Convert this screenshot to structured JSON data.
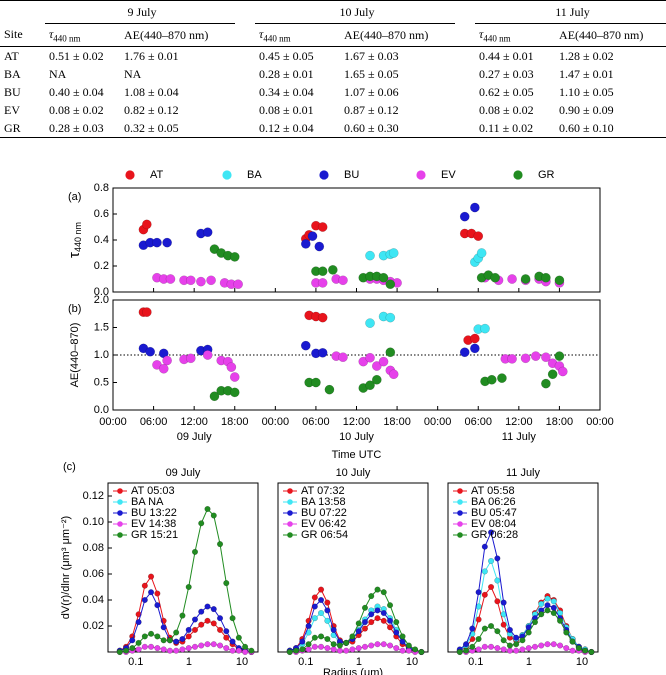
{
  "table": {
    "groups": [
      "9 July",
      "10 July",
      "11 July"
    ],
    "header": [
      "Site",
      {
        "main": "τ",
        "sub": "440 nm"
      },
      "AE(440–870 nm)",
      {
        "main": "τ",
        "sub": "440 nm"
      },
      "AE(440–870 nm)",
      {
        "main": "τ",
        "sub": "440 nm"
      },
      "AE(440–870 nm)"
    ],
    "rows": [
      [
        "AT",
        "0.51 ± 0.02",
        "1.76 ± 0.01",
        "0.45 ± 0.05",
        "1.67 ± 0.03",
        "0.44 ± 0.01",
        "1.28 ± 0.02"
      ],
      [
        "BA",
        "NA",
        "NA",
        "0.28 ± 0.01",
        "1.65 ± 0.05",
        "0.27 ± 0.03",
        "1.47 ± 0.01"
      ],
      [
        "BU",
        "0.40 ± 0.04",
        "1.08 ± 0.04",
        "0.34 ± 0.04",
        "1.07 ± 0.06",
        "0.62 ± 0.05",
        "1.10 ± 0.05"
      ],
      [
        "EV",
        "0.08 ± 0.02",
        "0.82 ± 0.12",
        "0.08 ± 0.01",
        "0.87 ± 0.12",
        "0.08 ± 0.02",
        "0.90 ± 0.09"
      ],
      [
        "GR",
        "0.28 ± 0.03",
        "0.32 ± 0.05",
        "0.12 ± 0.04",
        "0.60 ± 0.30",
        "0.11 ± 0.02",
        "0.60 ± 0.10"
      ]
    ]
  },
  "chart_data": [
    {
      "type": "scatter",
      "panel_label": "(a)",
      "ylabel": {
        "main": "τ",
        "sub": "440 nm"
      },
      "legend": "top",
      "xlim": [
        0,
        72
      ],
      "xticks": [
        0,
        6,
        12,
        18,
        24,
        30,
        36,
        42,
        48,
        54,
        60,
        66,
        72
      ],
      "xtick_labels": false,
      "ylim": [
        0,
        0.8
      ],
      "yticks": [
        {
          "value": 0,
          "label": "0.0"
        },
        0.2,
        0.4,
        0.6,
        0.8
      ],
      "series": [
        {
          "name": "AT",
          "color": "#e8141c",
          "x": [
            4.5,
            5,
            28.5,
            29,
            30,
            31,
            52,
            53,
            54
          ],
          "values": [
            0.48,
            0.52,
            0.41,
            0.44,
            0.51,
            0.5,
            0.45,
            0.45,
            0.43
          ]
        },
        {
          "name": "BA",
          "color": "#3ee6f4",
          "x": [
            38,
            40,
            41,
            41.5,
            53.5,
            54,
            54.5
          ],
          "values": [
            0.28,
            0.28,
            0.29,
            0.3,
            0.23,
            0.26,
            0.3
          ]
        },
        {
          "name": "BU",
          "color": "#1a1ad0",
          "x": [
            4.5,
            5.5,
            6.5,
            8,
            13,
            14,
            28.5,
            29.5,
            30.5,
            52,
            53.5
          ],
          "values": [
            0.36,
            0.38,
            0.38,
            0.38,
            0.45,
            0.46,
            0.37,
            0.43,
            0.35,
            0.58,
            0.65
          ]
        },
        {
          "name": "EV",
          "color": "#e641ea",
          "x": [
            6.5,
            7.5,
            8.5,
            10.5,
            11.5,
            13,
            14.5,
            16.5,
            17.5,
            18.5,
            30,
            31,
            33,
            34,
            38,
            39,
            40,
            41,
            42,
            55,
            57,
            59,
            61,
            63,
            64,
            66
          ],
          "values": [
            0.11,
            0.1,
            0.1,
            0.09,
            0.09,
            0.08,
            0.09,
            0.07,
            0.06,
            0.06,
            0.07,
            0.07,
            0.1,
            0.09,
            0.1,
            0.1,
            0.09,
            0.08,
            0.07,
            0.11,
            0.09,
            0.1,
            0.09,
            0.1,
            0.08,
            0.07
          ]
        },
        {
          "name": "GR",
          "color": "#218c21",
          "x": [
            15,
            16,
            17,
            18,
            30,
            31,
            32.5,
            37,
            38,
            39,
            40,
            41,
            54.5,
            55.5,
            56.5,
            61,
            63,
            64,
            66
          ],
          "values": [
            0.33,
            0.3,
            0.28,
            0.27,
            0.16,
            0.16,
            0.17,
            0.11,
            0.12,
            0.12,
            0.11,
            0.06,
            0.11,
            0.13,
            0.11,
            0.1,
            0.12,
            0.11,
            0.09
          ]
        }
      ]
    },
    {
      "type": "scatter",
      "panel_label": "(b)",
      "ylabel": "AE(440–870)",
      "xlabel": "Time UTC",
      "day_labels": [
        "09 July",
        "10 July",
        "11 July"
      ],
      "xlim": [
        0,
        72
      ],
      "xticks": [
        {
          "value": 0,
          "label": "00:00"
        },
        {
          "value": 6,
          "label": "06:00"
        },
        {
          "value": 12,
          "label": "12:00"
        },
        {
          "value": 18,
          "label": "18:00"
        },
        {
          "value": 24,
          "label": "00:00"
        },
        {
          "value": 30,
          "label": "06:00"
        },
        {
          "value": 36,
          "label": "12:00"
        },
        {
          "value": 42,
          "label": "18:00"
        },
        {
          "value": 48,
          "label": "00:00"
        },
        {
          "value": 54,
          "label": "06:00"
        },
        {
          "value": 60,
          "label": "12:00"
        },
        {
          "value": 66,
          "label": "18:00"
        },
        {
          "value": 72,
          "label": "00:00"
        }
      ],
      "ylim": [
        0,
        2.0
      ],
      "yticks": [
        {
          "value": 0,
          "label": "0.0"
        },
        0.5,
        {
          "value": 1,
          "label": "1.0"
        },
        1.5,
        {
          "value": 2,
          "label": "2.0"
        }
      ],
      "reference_line": 1,
      "series": [
        {
          "color": "#e8141c",
          "x": [
            4.5,
            5,
            29,
            30,
            31,
            52.5,
            53.5
          ],
          "values": [
            1.78,
            1.78,
            1.72,
            1.7,
            1.68,
            1.27,
            1.3
          ]
        },
        {
          "color": "#3ee6f4",
          "x": [
            38,
            40,
            41,
            54,
            55
          ],
          "values": [
            1.58,
            1.7,
            1.68,
            1.47,
            1.48
          ]
        },
        {
          "color": "#1a1ad0",
          "x": [
            4.5,
            5.5,
            7.5,
            13,
            14,
            28.5,
            30,
            31,
            52,
            53.5
          ],
          "values": [
            1.12,
            1.06,
            1.03,
            1.08,
            1.1,
            1.17,
            1.03,
            1.04,
            1.05,
            1.12
          ]
        },
        {
          "color": "#e641ea",
          "x": [
            6.5,
            7.5,
            8,
            10.5,
            11.5,
            14,
            16,
            17,
            17.5,
            18,
            33,
            34,
            37,
            38,
            39,
            40,
            41,
            41.5,
            58,
            59,
            61,
            62.5,
            64,
            65,
            66,
            66.5
          ],
          "values": [
            0.82,
            0.75,
            0.9,
            0.92,
            0.94,
            1.0,
            0.9,
            0.88,
            0.78,
            0.6,
            0.98,
            0.96,
            0.88,
            0.95,
            0.8,
            0.88,
            0.72,
            0.65,
            0.93,
            0.93,
            0.94,
            0.98,
            0.96,
            0.85,
            0.8,
            0.7
          ]
        },
        {
          "color": "#218c21",
          "x": [
            15,
            16,
            17,
            18,
            29,
            30,
            32,
            37,
            38,
            39,
            41,
            55,
            56,
            57.5,
            64,
            65,
            66
          ],
          "values": [
            0.25,
            0.35,
            0.35,
            0.32,
            0.5,
            0.5,
            0.37,
            0.4,
            0.45,
            0.55,
            1.05,
            0.52,
            0.55,
            0.58,
            0.48,
            0.65,
            0.98
          ]
        }
      ]
    },
    {
      "type": "line",
      "panel_label": "(c)",
      "title": "09 July",
      "ylabel": "dV(r)/dlnr (μm³ μm⁻²)",
      "legend": "upper left",
      "xscale": "log",
      "xlim": [
        0.03,
        20
      ],
      "xticks": [
        0.1,
        1,
        10
      ],
      "ylim": [
        0,
        0.13
      ],
      "yticks": [
        0.02,
        0.04,
        0.06,
        0.08,
        {
          "value": 0.1,
          "label": "0.10"
        },
        0.12
      ],
      "x": [
        0.05,
        0.0656,
        0.086,
        0.113,
        0.148,
        0.194,
        0.255,
        0.335,
        0.439,
        0.576,
        0.756,
        0.992,
        1.302,
        1.708,
        2.241,
        2.94,
        3.857,
        5.06,
        6.641,
        8.713,
        11.432,
        15.0
      ],
      "series": [
        {
          "name": "AT 05:03",
          "color": "#e8141c",
          "values": [
            0.001,
            0.004,
            0.012,
            0.029,
            0.051,
            0.058,
            0.045,
            0.024,
            0.011,
            0.007,
            0.008,
            0.012,
            0.017,
            0.021,
            0.024,
            0.022,
            0.017,
            0.011,
            0.006,
            0.002,
            0.001,
            0
          ]
        },
        {
          "name": "BA NA",
          "color": "#3ee6f4",
          "values": [
            null,
            null,
            null,
            null,
            null,
            null,
            null,
            null,
            null,
            null,
            null,
            null,
            null,
            null,
            null,
            null,
            null,
            null,
            null,
            null,
            null,
            null
          ]
        },
        {
          "name": "BU 13:22",
          "color": "#1a1ad0",
          "values": [
            0.001,
            0.003,
            0.009,
            0.023,
            0.04,
            0.046,
            0.036,
            0.019,
            0.009,
            0.008,
            0.01,
            0.017,
            0.025,
            0.031,
            0.035,
            0.033,
            0.026,
            0.016,
            0.008,
            0.003,
            0.001,
            0
          ]
        },
        {
          "name": "EV 14:38",
          "color": "#e641ea",
          "values": [
            0,
            0,
            0.001,
            0.002,
            0.004,
            0.004,
            0.003,
            0.002,
            0.001,
            0.001,
            0.002,
            0.003,
            0.004,
            0.005,
            0.006,
            0.006,
            0.005,
            0.003,
            0.001,
            0.001,
            0,
            0
          ]
        },
        {
          "name": "GR 15:21",
          "color": "#218c21",
          "values": [
            0,
            0.001,
            0.003,
            0.007,
            0.012,
            0.014,
            0.012,
            0.009,
            0.009,
            0.015,
            0.028,
            0.05,
            0.077,
            0.099,
            0.11,
            0.105,
            0.083,
            0.053,
            0.026,
            0.011,
            0.004,
            0.001
          ]
        }
      ]
    },
    {
      "type": "line",
      "title": "10 July",
      "xlabel": "Radius (μm)",
      "legend": "upper left",
      "xscale": "log",
      "xlim": [
        0.03,
        20
      ],
      "xticks": [
        0.1,
        1,
        10
      ],
      "ylim": [
        0,
        0.13
      ],
      "x": [
        0.05,
        0.0656,
        0.086,
        0.113,
        0.148,
        0.194,
        0.255,
        0.335,
        0.439,
        0.576,
        0.756,
        0.992,
        1.302,
        1.708,
        2.241,
        2.94,
        3.857,
        5.06,
        6.641,
        8.713,
        11.432,
        15.0
      ],
      "series": [
        {
          "name": "AT 07:32",
          "color": "#e8141c",
          "values": [
            0.001,
            0.003,
            0.01,
            0.024,
            0.042,
            0.048,
            0.038,
            0.02,
            0.009,
            0.007,
            0.008,
            0.013,
            0.018,
            0.023,
            0.026,
            0.024,
            0.019,
            0.012,
            0.006,
            0.003,
            0.001,
            0
          ]
        },
        {
          "name": "BA 13:58",
          "color": "#3ee6f4",
          "values": [
            0.001,
            0.002,
            0.006,
            0.015,
            0.026,
            0.03,
            0.024,
            0.013,
            0.007,
            0.007,
            0.01,
            0.017,
            0.025,
            0.032,
            0.035,
            0.033,
            0.026,
            0.017,
            0.008,
            0.004,
            0.001,
            0
          ]
        },
        {
          "name": "BU 07:22",
          "color": "#1a1ad0",
          "values": [
            0.001,
            0.003,
            0.008,
            0.02,
            0.035,
            0.04,
            0.032,
            0.017,
            0.008,
            0.007,
            0.01,
            0.016,
            0.023,
            0.029,
            0.032,
            0.03,
            0.024,
            0.015,
            0.008,
            0.003,
            0.001,
            0
          ]
        },
        {
          "name": "EV 06:42",
          "color": "#e641ea",
          "values": [
            0,
            0,
            0.001,
            0.002,
            0.004,
            0.004,
            0.003,
            0.002,
            0.001,
            0.001,
            0.002,
            0.003,
            0.004,
            0.005,
            0.006,
            0.006,
            0.005,
            0.003,
            0.001,
            0.001,
            0,
            0
          ]
        },
        {
          "name": "GR 06:54",
          "color": "#218c21",
          "values": [
            0,
            0.001,
            0.002,
            0.006,
            0.011,
            0.012,
            0.01,
            0.006,
            0.005,
            0.007,
            0.012,
            0.022,
            0.034,
            0.043,
            0.048,
            0.046,
            0.036,
            0.023,
            0.012,
            0.005,
            0.002,
            0
          ]
        }
      ]
    },
    {
      "type": "line",
      "title": "11 July",
      "legend": "upper left",
      "xscale": "log",
      "xlim": [
        0.03,
        20
      ],
      "xticks": [
        0.1,
        1,
        10
      ],
      "ylim": [
        0,
        0.13
      ],
      "x": [
        0.05,
        0.0656,
        0.086,
        0.113,
        0.148,
        0.194,
        0.255,
        0.335,
        0.439,
        0.576,
        0.756,
        0.992,
        1.302,
        1.708,
        2.241,
        2.94,
        3.857,
        5.06,
        6.641,
        8.713,
        11.432,
        15.0
      ],
      "series": [
        {
          "name": "AT 05:58",
          "color": "#e8141c",
          "values": [
            0.001,
            0.004,
            0.01,
            0.025,
            0.044,
            0.05,
            0.039,
            0.021,
            0.011,
            0.009,
            0.013,
            0.02,
            0.03,
            0.038,
            0.043,
            0.04,
            0.032,
            0.02,
            0.01,
            0.004,
            0.002,
            0
          ]
        },
        {
          "name": "BA 06:26",
          "color": "#3ee6f4",
          "values": [
            0.001,
            0.005,
            0.014,
            0.035,
            0.062,
            0.07,
            0.055,
            0.029,
            0.014,
            0.01,
            0.013,
            0.02,
            0.029,
            0.037,
            0.041,
            0.039,
            0.03,
            0.019,
            0.01,
            0.004,
            0.002,
            0
          ]
        },
        {
          "name": "BU 05:47",
          "color": "#1a1ad0",
          "values": [
            0.002,
            0.006,
            0.018,
            0.046,
            0.081,
            0.092,
            0.072,
            0.038,
            0.017,
            0.011,
            0.012,
            0.019,
            0.026,
            0.032,
            0.036,
            0.034,
            0.026,
            0.017,
            0.008,
            0.004,
            0.001,
            0
          ]
        },
        {
          "name": "EV 08:04",
          "color": "#e641ea",
          "values": [
            0,
            0,
            0.001,
            0.002,
            0.004,
            0.004,
            0.003,
            0.002,
            0.001,
            0.001,
            0.002,
            0.003,
            0.004,
            0.005,
            0.006,
            0.006,
            0.005,
            0.003,
            0.001,
            0.001,
            0,
            0
          ]
        },
        {
          "name": "GR 06:28",
          "color": "#218c21",
          "values": [
            0,
            0.001,
            0.004,
            0.01,
            0.018,
            0.02,
            0.016,
            0.009,
            0.005,
            0.006,
            0.009,
            0.015,
            0.023,
            0.029,
            0.032,
            0.03,
            0.024,
            0.015,
            0.008,
            0.003,
            0.001,
            0
          ]
        }
      ]
    }
  ]
}
